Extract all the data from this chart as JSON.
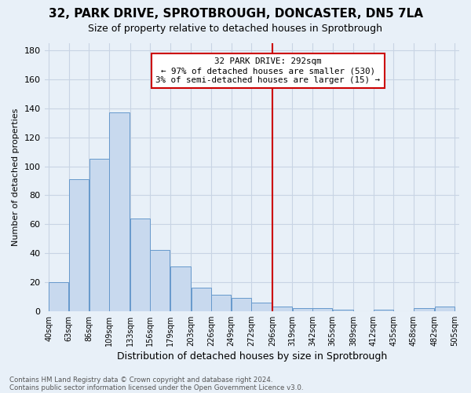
{
  "title": "32, PARK DRIVE, SPROTBROUGH, DONCASTER, DN5 7LA",
  "subtitle": "Size of property relative to detached houses in Sprotbrough",
  "xlabel": "Distribution of detached houses by size in Sprotbrough",
  "ylabel": "Number of detached properties",
  "footer1": "Contains HM Land Registry data © Crown copyright and database right 2024.",
  "footer2": "Contains public sector information licensed under the Open Government Licence v3.0.",
  "bar_edges": [
    40,
    63,
    86,
    109,
    133,
    156,
    179,
    203,
    226,
    249,
    272,
    296,
    319,
    342,
    365,
    389,
    412,
    435,
    458,
    482,
    505
  ],
  "bar_heights": [
    20,
    91,
    105,
    137,
    64,
    42,
    31,
    16,
    11,
    9,
    6,
    3,
    2,
    2,
    1,
    0,
    1,
    0,
    2,
    3
  ],
  "bar_color": "#c8d9ee",
  "bar_edge_color": "#6699cc",
  "ylim": [
    0,
    185
  ],
  "yticks": [
    0,
    20,
    40,
    60,
    80,
    100,
    120,
    140,
    160,
    180
  ],
  "red_line_x": 296,
  "annotation_line1": "32 PARK DRIVE: 292sqm",
  "annotation_line2": "← 97% of detached houses are smaller (530)",
  "annotation_line3": "3% of semi-detached houses are larger (15) →",
  "annotation_box_color": "#ffffff",
  "annotation_box_edge": "#cc0000",
  "background_color": "#e8f0f8",
  "grid_color": "#c8d4e4",
  "title_fontsize": 11,
  "subtitle_fontsize": 9
}
